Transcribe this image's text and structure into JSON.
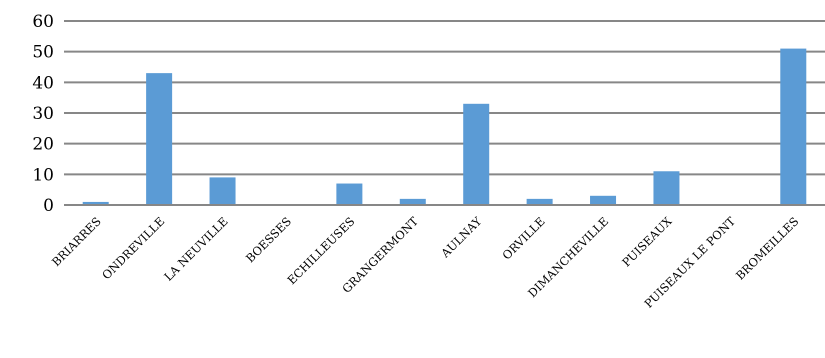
{
  "chart_data": {
    "type": "bar",
    "categories": [
      "BRIARRES",
      "ONDREVILLE",
      "LA NEUVILLE",
      "BOESSES",
      "ECHILLEUSES",
      "GRANGERMONT",
      "AULNAY",
      "ORVILLE",
      "DIMANCHEVILLE",
      "PUISEAUX",
      "PUISEAUX  LE PONT",
      "BROMEILLES"
    ],
    "values": [
      1,
      43,
      9,
      0,
      7,
      2,
      33,
      2,
      3,
      11,
      0,
      51
    ],
    "ylim": [
      0,
      60
    ],
    "yticks": [
      "0",
      "10",
      "20",
      "30",
      "40",
      "50",
      "60"
    ],
    "grid": true,
    "legend": "none",
    "bar_color": "#5B9BD5"
  }
}
